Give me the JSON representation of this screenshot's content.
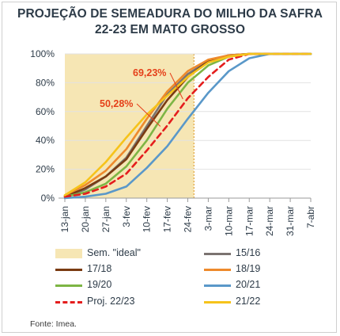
{
  "title_line1": "PROJEÇÃO DE SEMEADURA DO MILHO DA SAFRA",
  "title_line2": "22-23 EM MATO GROSSO",
  "source": "Fonte: Imea.",
  "chart_data": {
    "type": "line",
    "x_categories": [
      "13-jan",
      "20-jan",
      "27-jan",
      "3-fev",
      "10-fev",
      "17-fev",
      "24-fev",
      "3-mar",
      "10-mar",
      "17-mar",
      "24-mar",
      "31-mar",
      "7-abr"
    ],
    "y_ticks": [
      "0%",
      "20%",
      "40%",
      "60%",
      "80%",
      "100%"
    ],
    "ylim": [
      0,
      100
    ],
    "ideal_window": {
      "label": "Sem. \"ideal\"",
      "from_index": 0,
      "to_index": 6.3,
      "color": "#f6e6b4"
    },
    "annotations": [
      {
        "text": "69,23%",
        "x_index": 5.8,
        "y": 69.23,
        "color": "#e5401a"
      },
      {
        "text": "50,28%",
        "x_index": 4.7,
        "y": 50.28,
        "color": "#e5401a"
      }
    ],
    "series": [
      {
        "name": "15/16",
        "color": "#7b7370",
        "dashed": false,
        "values": [
          1,
          6,
          15,
          28,
          50,
          72,
          86,
          95,
          99,
          100,
          100,
          100,
          100
        ]
      },
      {
        "name": "17/18",
        "color": "#7a3b12",
        "dashed": false,
        "values": [
          1,
          7,
          15,
          27,
          48,
          68,
          84,
          95,
          99,
          100,
          100,
          100,
          100
        ]
      },
      {
        "name": "18/19",
        "color": "#ee8a2c",
        "dashed": false,
        "values": [
          2,
          9,
          19,
          34,
          55,
          74,
          88,
          96,
          99,
          100,
          100,
          100,
          100
        ]
      },
      {
        "name": "19/20",
        "color": "#7db544",
        "dashed": false,
        "values": [
          1,
          4,
          10,
          22,
          40,
          62,
          80,
          92,
          98,
          100,
          100,
          100,
          100
        ]
      },
      {
        "name": "20/21",
        "color": "#5a98c9",
        "dashed": false,
        "values": [
          0,
          1,
          3,
          8,
          21,
          36,
          55,
          73,
          88,
          97,
          100,
          100,
          100
        ]
      },
      {
        "name": "Proj. 22/23",
        "color": "#e41d1d",
        "dashed": true,
        "values": [
          1,
          3,
          8,
          17,
          33,
          50.28,
          69.23,
          84,
          96,
          100,
          100,
          100,
          100
        ]
      },
      {
        "name": "21/22",
        "color": "#f6c31b",
        "dashed": false,
        "values": [
          2,
          11,
          25,
          42,
          58,
          71,
          84,
          94,
          98,
          100,
          100,
          100,
          100
        ]
      }
    ]
  }
}
